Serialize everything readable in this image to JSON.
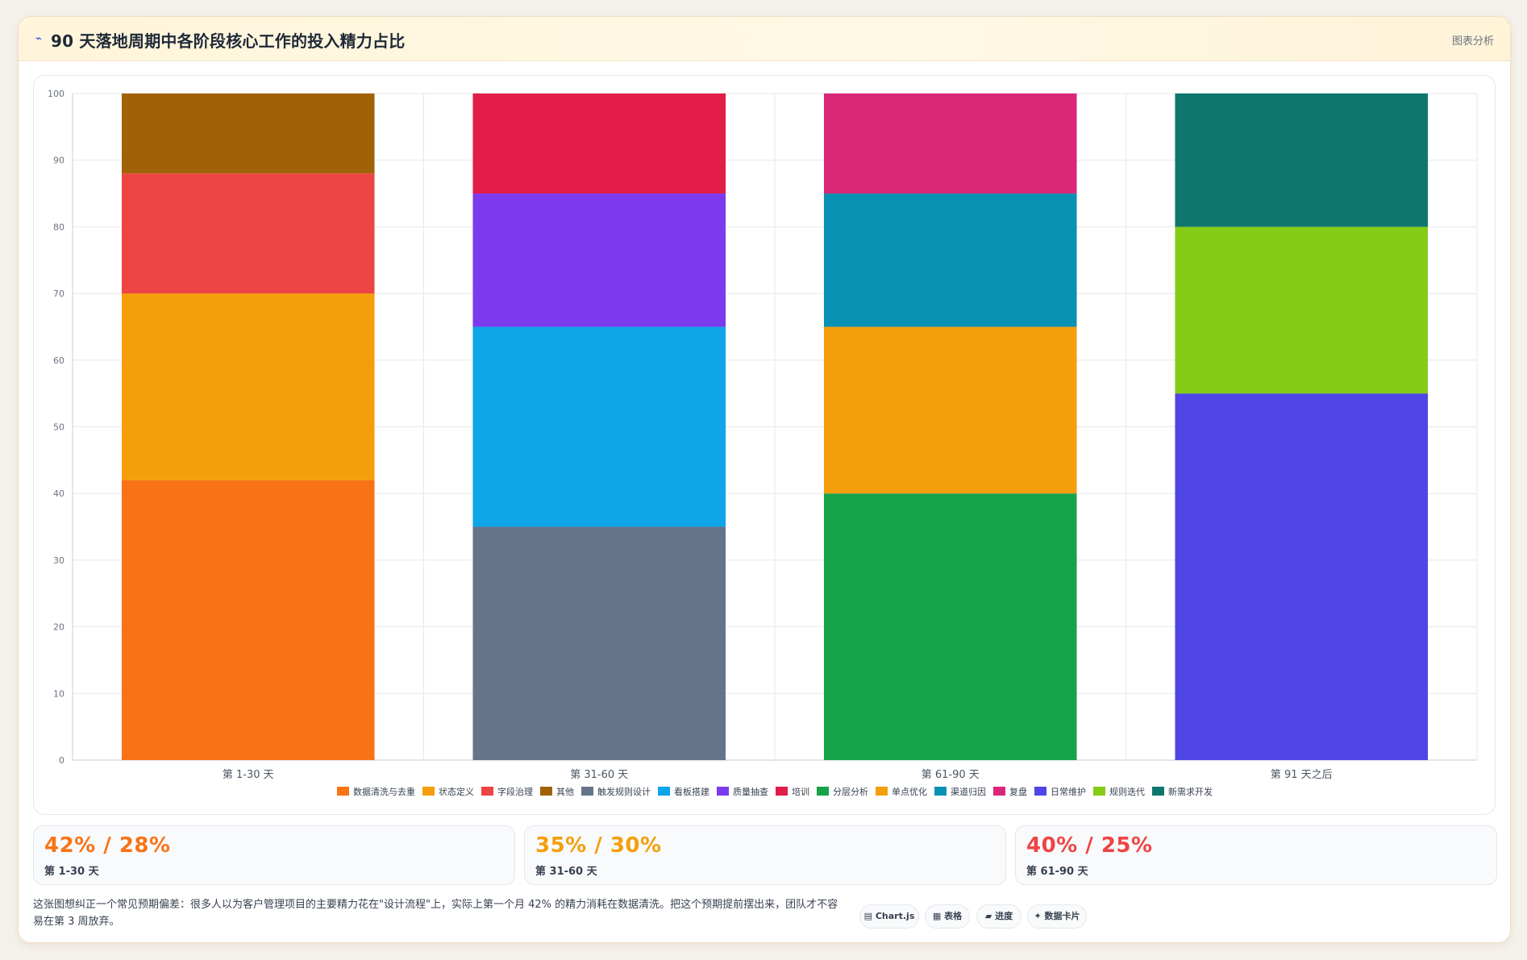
{
  "header": {
    "icon": "chart-line-icon",
    "title": "90 天落地周期中各阶段核心工作的投入精力占比",
    "tag": "图表分析"
  },
  "chart_data": {
    "type": "bar",
    "stacked": true,
    "categories": [
      "第 1-30 天",
      "第 31-60 天",
      "第 61-90 天",
      "第 91 天之后"
    ],
    "ylim": [
      0,
      100
    ],
    "yticks": [
      0,
      10,
      20,
      30,
      40,
      50,
      60,
      70,
      80,
      90,
      100
    ],
    "grid": true,
    "legend_position": "bottom",
    "series": [
      {
        "name": "数据清洗与去重",
        "color": "#f97316",
        "values": [
          42,
          0,
          0,
          0
        ]
      },
      {
        "name": "状态定义",
        "color": "#f59e0b",
        "values": [
          28,
          0,
          0,
          0
        ]
      },
      {
        "name": "字段治理",
        "color": "#ef4444",
        "values": [
          18,
          0,
          0,
          0
        ]
      },
      {
        "name": "其他",
        "color": "#a16207",
        "values": [
          12,
          0,
          0,
          0
        ]
      },
      {
        "name": "触发规则设计",
        "color": "#64748b",
        "values": [
          0,
          35,
          0,
          0
        ]
      },
      {
        "name": "看板搭建",
        "color": "#0ea5e9",
        "values": [
          0,
          30,
          0,
          0
        ]
      },
      {
        "name": "质量抽查",
        "color": "#7c3aed",
        "values": [
          0,
          20,
          0,
          0
        ]
      },
      {
        "name": "培训",
        "color": "#e11d48",
        "values": [
          0,
          15,
          0,
          0
        ]
      },
      {
        "name": "分层分析",
        "color": "#16a34a",
        "values": [
          0,
          0,
          40,
          0
        ]
      },
      {
        "name": "单点优化",
        "color": "#f59e0b",
        "values": [
          0,
          0,
          25,
          0
        ]
      },
      {
        "name": "渠道归因",
        "color": "#0891b2",
        "values": [
          0,
          0,
          20,
          0
        ]
      },
      {
        "name": "复盘",
        "color": "#db2777",
        "values": [
          0,
          0,
          15,
          0
        ]
      },
      {
        "name": "日常维护",
        "color": "#4f46e5",
        "values": [
          0,
          0,
          0,
          55
        ]
      },
      {
        "name": "规则迭代",
        "color": "#84cc16",
        "values": [
          0,
          0,
          0,
          25
        ]
      },
      {
        "name": "新需求开发",
        "color": "#0f766e",
        "values": [
          0,
          0,
          0,
          20
        ]
      }
    ]
  },
  "stats": [
    {
      "value": "42% / 28%",
      "label": "第 1-30 天",
      "color": "#f97316"
    },
    {
      "value": "35% / 30%",
      "label": "第 31-60 天",
      "color": "#f59e0b"
    },
    {
      "value": "40% / 25%",
      "label": "第 61-90 天",
      "color": "#ef4444"
    }
  ],
  "footnote": "这张图想纠正一个常见预期偏差：很多人以为客户管理项目的主要精力花在\"设计流程\"上，实际上第一个月 42% 的精力消耗在数据清洗。把这个预期提前摆出来，团队才不容易在第 3 周放弃。",
  "chips": [
    {
      "icon": "chart-icon",
      "glyph": "▤",
      "label": "Chart.js"
    },
    {
      "icon": "table-icon",
      "glyph": "▦",
      "label": "表格"
    },
    {
      "icon": "progress-icon",
      "glyph": "▰",
      "label": "进度"
    },
    {
      "icon": "sparkle-icon",
      "glyph": "✦",
      "label": "数据卡片"
    }
  ]
}
